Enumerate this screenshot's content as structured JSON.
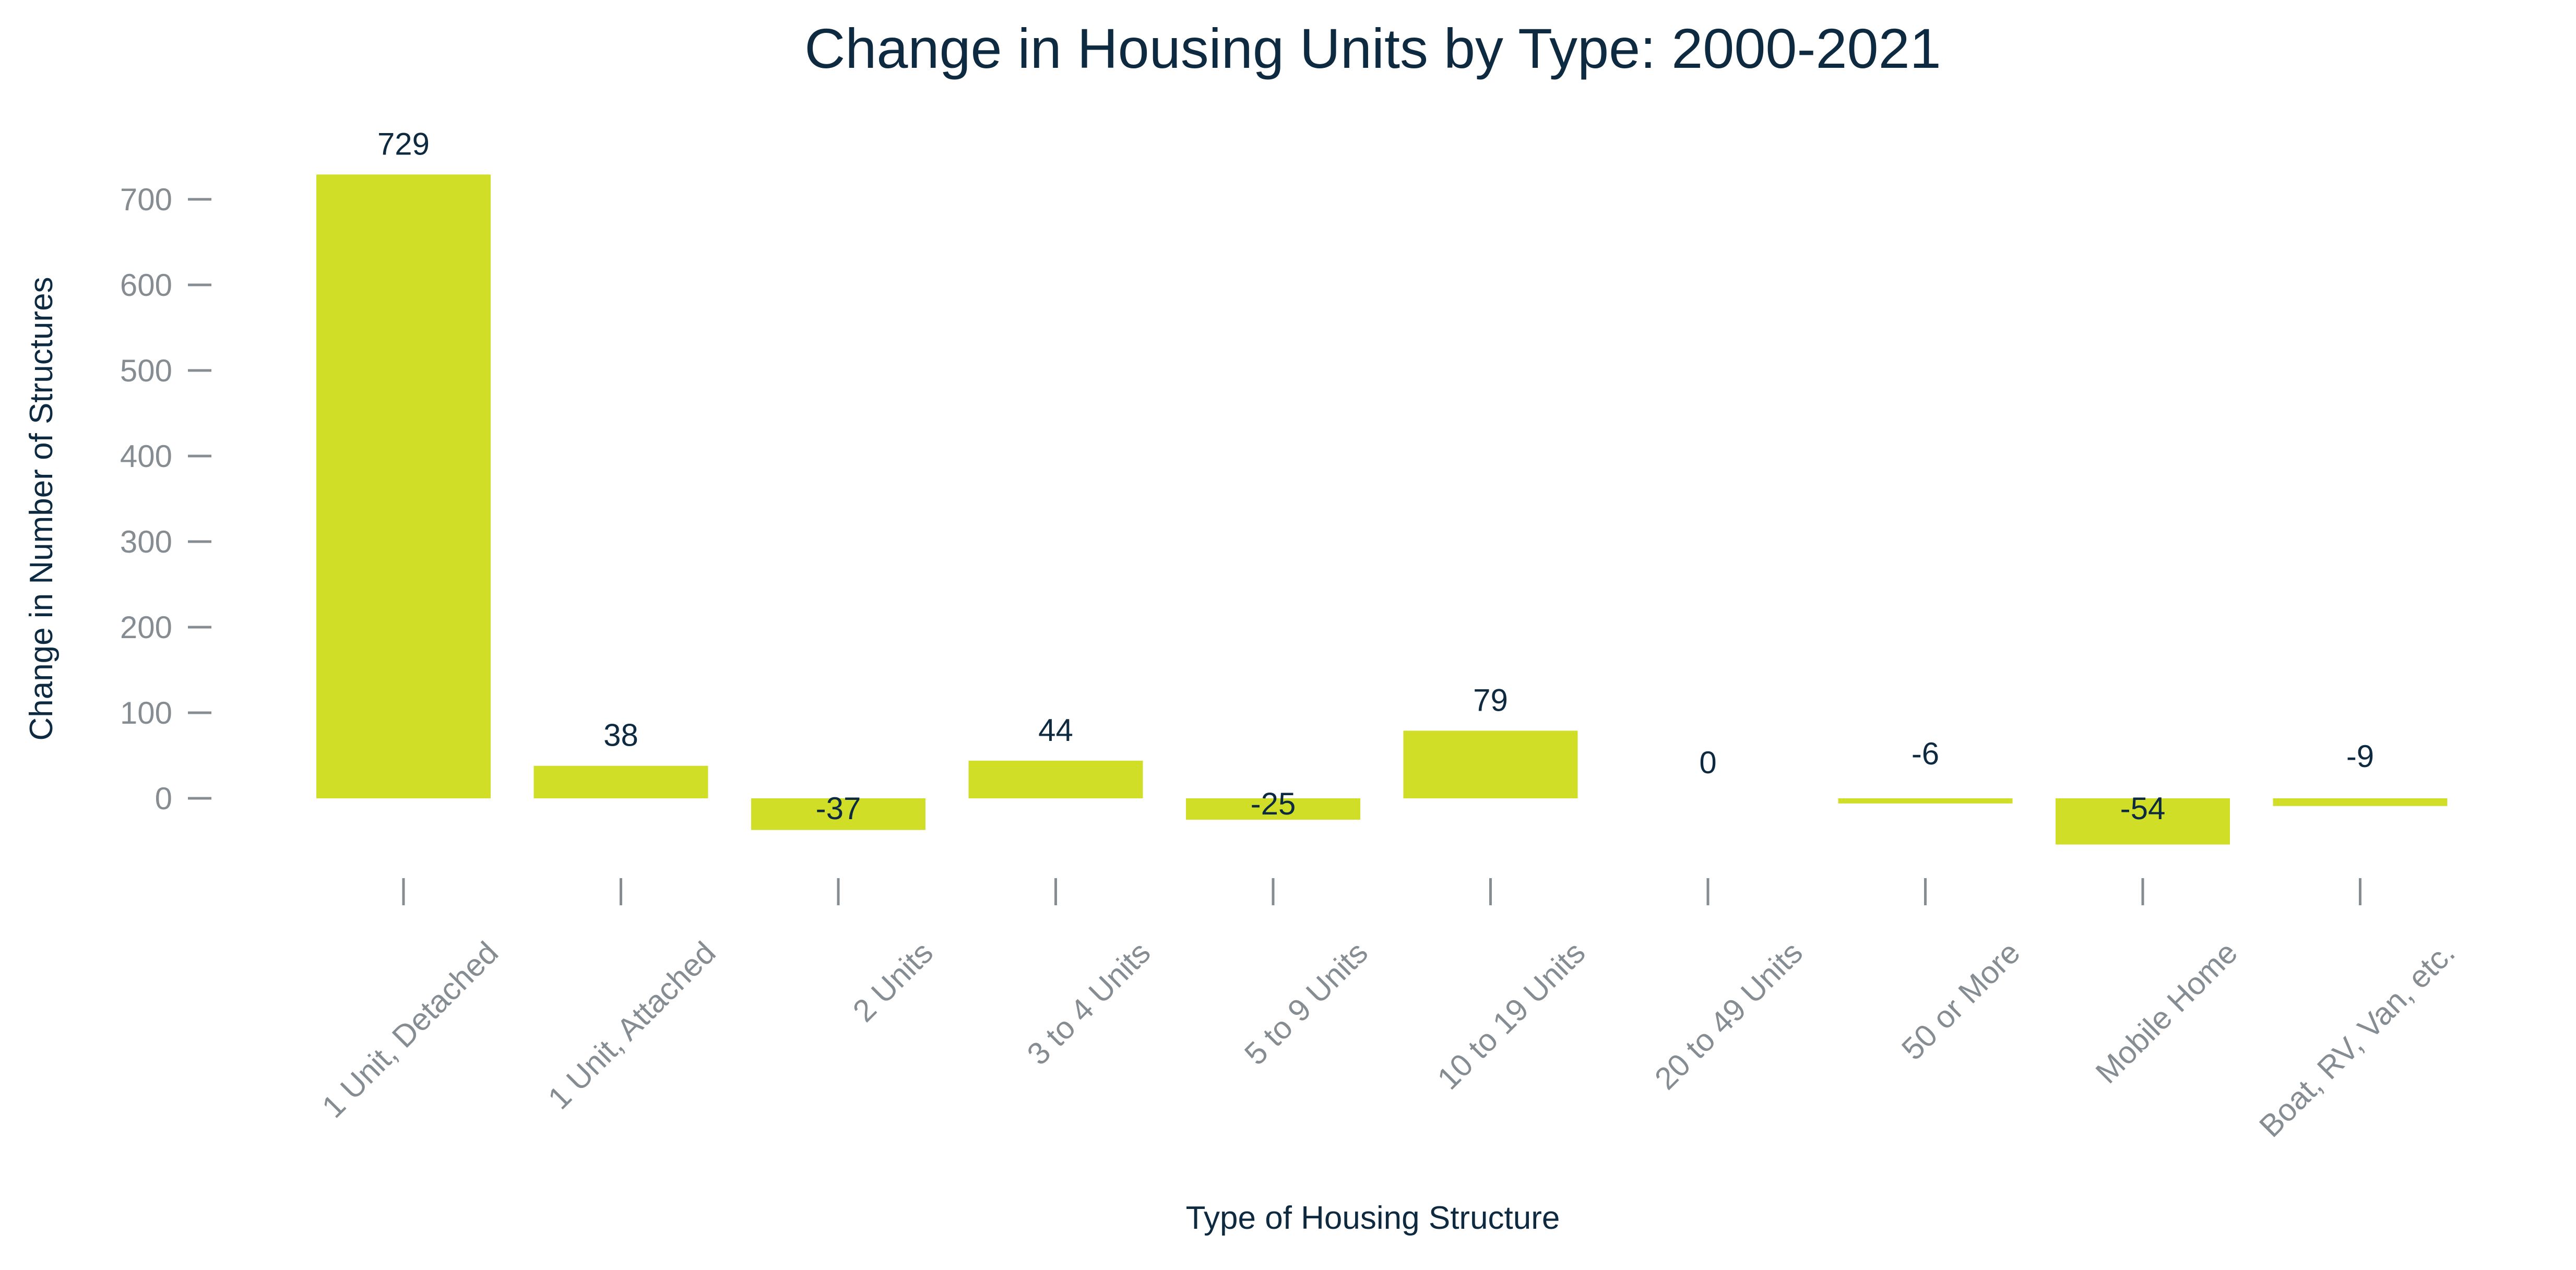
{
  "chart_data": {
    "type": "bar",
    "title": "Change in Housing Units by Type: 2000-2021",
    "xlabel": "Type of Housing Structure",
    "ylabel": "Change in Number of Structures",
    "categories": [
      "1 Unit, Detached",
      "1 Unit, Attached",
      "2 Units",
      "3 to 4 Units",
      "5 to 9 Units",
      "10 to 19 Units",
      "20 to 49 Units",
      "50 or More",
      "Mobile Home",
      "Boat, RV, Van, etc."
    ],
    "values": [
      729,
      38,
      -37,
      44,
      -25,
      79,
      0,
      -6,
      -54,
      -9
    ],
    "data_labels": [
      "729",
      "38",
      "-37",
      "44",
      "-25",
      "79",
      "0",
      "-6",
      "-54",
      "-9"
    ],
    "yticks": [
      0,
      100,
      200,
      300,
      400,
      500,
      600,
      700
    ],
    "ytick_labels": [
      "0",
      "100",
      "200",
      "300",
      "400",
      "500",
      "600",
      "700"
    ],
    "ylim": [
      -90,
      760
    ],
    "grid": false,
    "legend": "none",
    "bar_color": "#d0de28",
    "text_color": "#0d2a40",
    "tick_color": "#858c92"
  }
}
